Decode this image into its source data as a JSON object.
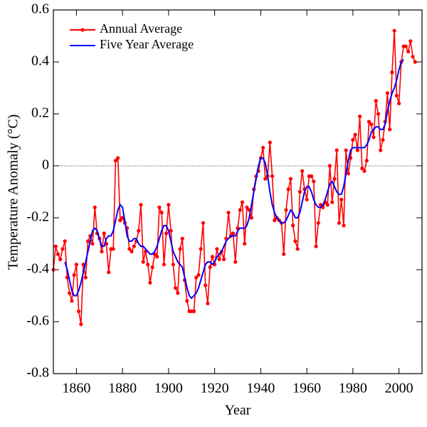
{
  "chart_data": {
    "type": "line",
    "xlabel": "Year",
    "ylabel": "Temperature Anomaly (°C)",
    "xlim": [
      1850,
      2010
    ],
    "xticks": [
      1860,
      1880,
      1900,
      1920,
      1940,
      1960,
      1980,
      2000
    ],
    "ylim": [
      -0.8,
      0.6
    ],
    "yticks": [
      -0.8,
      -0.6,
      -0.4,
      -0.2,
      0,
      0.2,
      0.4,
      0.6
    ],
    "legend": "upper left",
    "x": [
      1850,
      1851,
      1852,
      1853,
      1854,
      1855,
      1856,
      1857,
      1858,
      1859,
      1860,
      1861,
      1862,
      1863,
      1864,
      1865,
      1866,
      1867,
      1868,
      1869,
      1870,
      1871,
      1872,
      1873,
      1874,
      1875,
      1876,
      1877,
      1878,
      1879,
      1880,
      1881,
      1882,
      1883,
      1884,
      1885,
      1886,
      1887,
      1888,
      1889,
      1890,
      1891,
      1892,
      1893,
      1894,
      1895,
      1896,
      1897,
      1898,
      1899,
      1900,
      1901,
      1902,
      1903,
      1904,
      1905,
      1906,
      1907,
      1908,
      1909,
      1910,
      1911,
      1912,
      1913,
      1914,
      1915,
      1916,
      1917,
      1918,
      1919,
      1920,
      1921,
      1922,
      1923,
      1924,
      1925,
      1926,
      1927,
      1928,
      1929,
      1930,
      1931,
      1932,
      1933,
      1934,
      1935,
      1936,
      1937,
      1938,
      1939,
      1940,
      1941,
      1942,
      1943,
      1944,
      1945,
      1946,
      1947,
      1948,
      1949,
      1950,
      1951,
      1952,
      1953,
      1954,
      1955,
      1956,
      1957,
      1958,
      1959,
      1960,
      1961,
      1962,
      1963,
      1964,
      1965,
      1966,
      1967,
      1968,
      1969,
      1970,
      1971,
      1972,
      1973,
      1974,
      1975,
      1976,
      1977,
      1978,
      1979,
      1980,
      1981,
      1982,
      1983,
      1984,
      1985,
      1986,
      1987,
      1988,
      1989,
      1990,
      1991,
      1992,
      1993,
      1994,
      1995,
      1996,
      1997,
      1998,
      1999,
      2000,
      2001,
      2002,
      2003,
      2004,
      2005,
      2006,
      2007
    ],
    "series": [
      {
        "name": "Annual Average",
        "color": "#ff0000",
        "markers": true,
        "values": [
          -0.4,
          -0.31,
          -0.34,
          -0.36,
          -0.32,
          -0.29,
          -0.43,
          -0.49,
          -0.52,
          -0.42,
          -0.38,
          -0.56,
          -0.61,
          -0.38,
          -0.43,
          -0.29,
          -0.27,
          -0.3,
          -0.16,
          -0.26,
          -0.28,
          -0.33,
          -0.26,
          -0.3,
          -0.41,
          -0.32,
          -0.32,
          0.02,
          0.03,
          -0.21,
          -0.2,
          -0.22,
          -0.24,
          -0.32,
          -0.33,
          -0.31,
          -0.29,
          -0.25,
          -0.15,
          -0.37,
          -0.33,
          -0.38,
          -0.45,
          -0.39,
          -0.34,
          -0.35,
          -0.16,
          -0.18,
          -0.38,
          -0.26,
          -0.15,
          -0.25,
          -0.38,
          -0.47,
          -0.49,
          -0.32,
          -0.28,
          -0.44,
          -0.52,
          -0.56,
          -0.56,
          -0.56,
          -0.43,
          -0.42,
          -0.32,
          -0.22,
          -0.46,
          -0.53,
          -0.39,
          -0.35,
          -0.38,
          -0.32,
          -0.36,
          -0.33,
          -0.36,
          -0.28,
          -0.18,
          -0.27,
          -0.26,
          -0.37,
          -0.24,
          -0.17,
          -0.14,
          -0.3,
          -0.16,
          -0.17,
          -0.2,
          -0.09,
          -0.04,
          -0.02,
          0.03,
          0.07,
          -0.05,
          -0.04,
          0.09,
          -0.04,
          -0.21,
          -0.2,
          -0.21,
          -0.22,
          -0.34,
          -0.17,
          -0.09,
          -0.05,
          -0.23,
          -0.29,
          -0.32,
          -0.1,
          -0.02,
          -0.09,
          -0.13,
          -0.04,
          -0.04,
          -0.06,
          -0.31,
          -0.22,
          -0.15,
          -0.16,
          -0.14,
          -0.15,
          0.0,
          -0.14,
          -0.05,
          0.06,
          -0.22,
          -0.13,
          -0.23,
          0.06,
          -0.03,
          0.03,
          0.1,
          0.12,
          0.06,
          0.19,
          -0.01,
          -0.02,
          0.02,
          0.17,
          0.16,
          0.11,
          0.25,
          0.2,
          0.06,
          0.1,
          0.17,
          0.28,
          0.14,
          0.36,
          0.52,
          0.27,
          0.24,
          0.4,
          0.46,
          0.46,
          0.44,
          0.48,
          0.42,
          0.4
        ]
      },
      {
        "name": "Five Year Average",
        "color": "#0000ff",
        "markers": false,
        "values": [
          null,
          null,
          null,
          null,
          null,
          -0.37,
          -0.4,
          -0.44,
          -0.48,
          -0.5,
          -0.5,
          -0.48,
          -0.45,
          -0.41,
          -0.37,
          -0.33,
          -0.29,
          -0.25,
          -0.24,
          -0.25,
          -0.28,
          -0.31,
          -0.31,
          -0.28,
          -0.27,
          -0.27,
          -0.25,
          -0.21,
          -0.17,
          -0.15,
          -0.16,
          -0.21,
          -0.27,
          -0.29,
          -0.29,
          -0.28,
          -0.28,
          -0.3,
          -0.31,
          -0.31,
          -0.32,
          -0.33,
          -0.34,
          -0.34,
          -0.33,
          -0.31,
          -0.28,
          -0.25,
          -0.23,
          -0.23,
          -0.25,
          -0.29,
          -0.33,
          -0.35,
          -0.37,
          -0.38,
          -0.39,
          -0.43,
          -0.47,
          -0.5,
          -0.51,
          -0.5,
          -0.49,
          -0.47,
          -0.44,
          -0.41,
          -0.38,
          -0.37,
          -0.37,
          -0.38,
          -0.37,
          -0.35,
          -0.34,
          -0.33,
          -0.31,
          -0.29,
          -0.28,
          -0.27,
          -0.27,
          -0.27,
          -0.25,
          -0.24,
          -0.24,
          -0.24,
          -0.23,
          -0.2,
          -0.15,
          -0.1,
          -0.05,
          0.0,
          0.03,
          0.03,
          0.01,
          -0.04,
          -0.1,
          -0.15,
          -0.18,
          -0.2,
          -0.21,
          -0.22,
          -0.22,
          -0.21,
          -0.19,
          -0.17,
          -0.18,
          -0.2,
          -0.2,
          -0.18,
          -0.14,
          -0.1,
          -0.08,
          -0.08,
          -0.1,
          -0.13,
          -0.15,
          -0.16,
          -0.16,
          -0.15,
          -0.13,
          -0.1,
          -0.07,
          -0.06,
          -0.08,
          -0.1,
          -0.11,
          -0.11,
          -0.08,
          -0.03,
          0.02,
          0.06,
          0.07,
          0.07,
          0.07,
          0.07,
          0.07,
          0.07,
          0.08,
          0.1,
          0.13,
          0.14,
          0.15,
          0.15,
          0.14,
          0.14,
          0.16,
          0.21,
          0.25,
          0.28,
          0.3,
          0.33,
          0.37,
          0.4,
          0.41,
          null,
          null,
          null,
          null,
          null
        ]
      }
    ]
  }
}
